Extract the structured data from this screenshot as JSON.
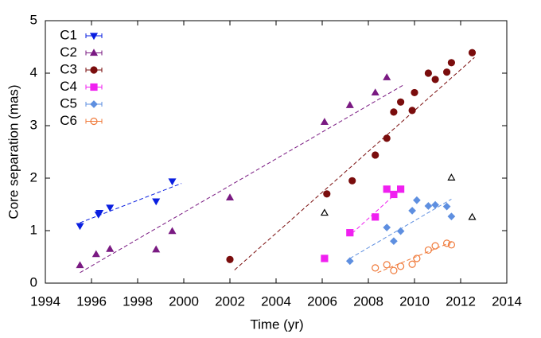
{
  "chart_data": {
    "type": "scatter",
    "x_label": "Time (yr)",
    "y_label": "Core separation (mas)",
    "xlim": [
      1994,
      2014
    ],
    "xticks": [
      1994,
      1996,
      1998,
      2000,
      2002,
      2004,
      2006,
      2008,
      2010,
      2012,
      2014
    ],
    "ylim": [
      0,
      5
    ],
    "yticks": [
      0,
      1,
      2,
      3,
      4,
      5
    ],
    "legend": "top-left",
    "series": [
      {
        "name": "C1",
        "color": "#0a1fe0",
        "marker": "triangle-down",
        "filled": true,
        "x": [
          1995.5,
          1996.3,
          1996.35,
          1996.8,
          1998.8,
          1999.5
        ],
        "values": [
          1.09,
          1.31,
          1.34,
          1.44,
          1.56,
          1.94
        ],
        "fit_x": [
          1995.5,
          1999.9
        ],
        "fit_y": [
          1.15,
          1.9
        ]
      },
      {
        "name": "C2",
        "color": "#7a1a82",
        "marker": "triangle-up",
        "filled": true,
        "x": [
          1995.5,
          1996.2,
          1996.8,
          1998.8,
          1999.5,
          2002,
          2006.1,
          2007.2,
          2008.3,
          2008.8
        ],
        "values": [
          0.34,
          0.55,
          0.65,
          0.64,
          0.99,
          1.63,
          3.07,
          3.39,
          3.63,
          3.92
        ],
        "fit_x": [
          1995.5,
          2009.5
        ],
        "fit_y": [
          0.2,
          3.77
        ]
      },
      {
        "name": "C3",
        "color": "#7a0d0d",
        "marker": "circle",
        "filled": true,
        "x": [
          2002,
          2006.2,
          2007.3,
          2008.3,
          2008.8,
          2009.1,
          2009.4,
          2009.9,
          2010,
          2010.6,
          2010.9,
          2011.4,
          2011.6,
          2012.5
        ],
        "values": [
          0.45,
          1.7,
          1.95,
          2.44,
          2.76,
          3.26,
          3.45,
          3.29,
          3.63,
          4.0,
          3.88,
          4.02,
          4.2,
          4.39
        ],
        "fit_x": [
          2002.2,
          2012.6
        ],
        "fit_y": [
          0.25,
          4.3
        ]
      },
      {
        "name": "C4",
        "color": "#f020f0",
        "marker": "square",
        "filled": true,
        "x": [
          2006.1,
          2007.2,
          2008.3,
          2008.8,
          2009.1,
          2009.4
        ],
        "values": [
          0.47,
          0.96,
          1.26,
          1.79,
          1.69,
          1.79
        ],
        "fit_x": [
          2007.3,
          2009.3
        ],
        "fit_y": [
          0.95,
          1.75
        ]
      },
      {
        "name": "C5",
        "color": "#5e8fe0",
        "marker": "diamond",
        "filled": true,
        "x": [
          2007.2,
          2008.8,
          2009.1,
          2009.4,
          2009.9,
          2010.1,
          2010.6,
          2010.9,
          2011.4,
          2011.6
        ],
        "values": [
          0.42,
          1.06,
          0.8,
          0.99,
          1.38,
          1.58,
          1.47,
          1.49,
          1.46,
          1.27
        ],
        "fit_x": [
          2007.2,
          2011.6
        ],
        "fit_y": [
          0.47,
          1.6
        ]
      },
      {
        "name": "C6",
        "color": "#f07a3a",
        "marker": "circle",
        "filled": false,
        "x": [
          2008.3,
          2008.8,
          2009.1,
          2009.4,
          2009.9,
          2010.1,
          2010.6,
          2010.9,
          2011.4,
          2011.6
        ],
        "values": [
          0.29,
          0.35,
          0.24,
          0.32,
          0.36,
          0.47,
          0.63,
          0.71,
          0.76,
          0.73
        ],
        "fit_x": [
          2008.4,
          2011.7
        ],
        "fit_y": [
          0.2,
          0.8
        ]
      },
      {
        "color": "#000000",
        "marker": "triangle-up",
        "filled": false,
        "x": [
          2006.1,
          2011.6,
          2012.5
        ],
        "values": [
          1.34,
          2.01,
          1.26
        ]
      }
    ]
  }
}
